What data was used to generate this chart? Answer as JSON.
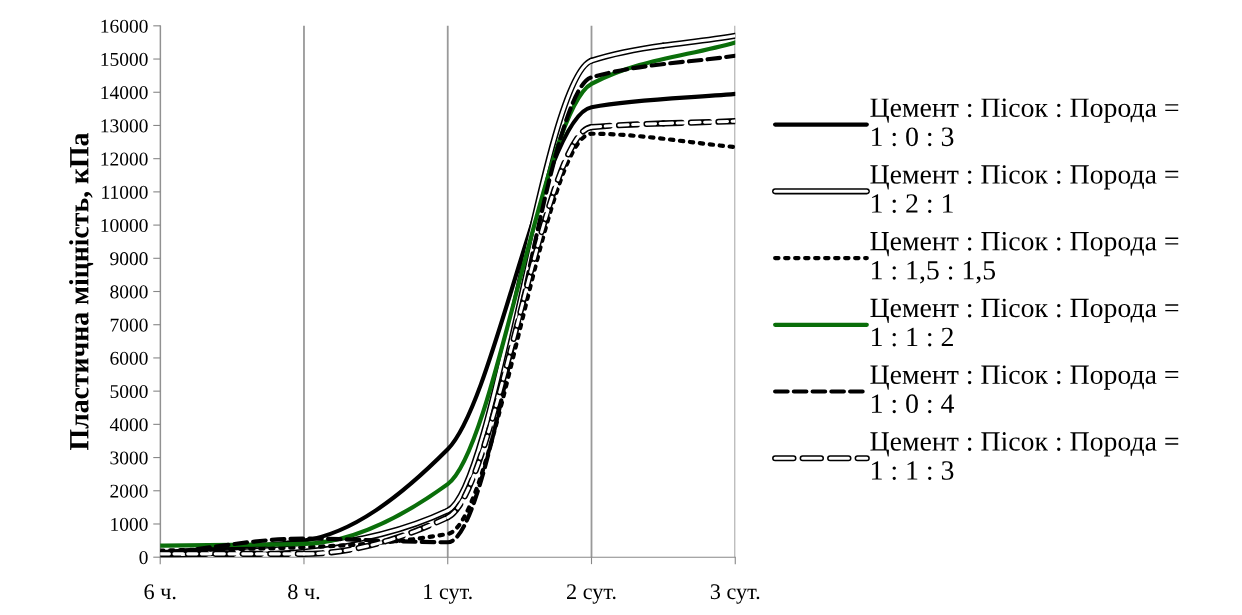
{
  "chart_data": {
    "type": "line",
    "ylabel": "Пластична міцність, кПа",
    "categories": [
      "6 ч.",
      "8 ч.",
      "1 сут.",
      "2 сут.",
      "3 сут."
    ],
    "ylim": [
      0,
      16000
    ],
    "yticks": [
      0,
      1000,
      2000,
      3000,
      4000,
      5000,
      6000,
      7000,
      8000,
      9000,
      10000,
      11000,
      12000,
      13000,
      14000,
      15000,
      16000
    ],
    "grid": "x",
    "legend": "right",
    "marker": "none",
    "series": [
      {
        "name": "Цемент : Пісок : Порода =\n1 : 0 : 3",
        "color": "#000000",
        "line_style": "solid",
        "values": [
          150,
          500,
          3250,
          13550,
          13950
        ]
      },
      {
        "name": "Цемент : Пісок : Порода =\n1 : 2 : 1",
        "color": "#000000",
        "colors": [
          "#ffffff",
          "#ffffff",
          "#ffffff",
          "#ffffff",
          "#ffffff"
        ],
        "line_style": "solid",
        "values": [
          50,
          300,
          1400,
          14950,
          15700
        ]
      },
      {
        "name": "Цемент : Пісок : Порода =\n1 : 1,5 : 1,5",
        "color": "#000000",
        "line_style": "dotted",
        "values": [
          200,
          300,
          700,
          12750,
          12350
        ]
      },
      {
        "name": "Цемент : Пісок : Порода =\n1 : 1 : 2",
        "color": "#0a6e0a",
        "line_style": "solid",
        "values": [
          350,
          400,
          2200,
          14250,
          15500
        ]
      },
      {
        "name": "Цемент : Пісок : Порода =\n1 : 0 : 4",
        "color": "#000000",
        "line_style": "dashed",
        "values": [
          100,
          560,
          450,
          14450,
          15100
        ]
      },
      {
        "name": "Цемент : Пісок : Порода =\n1 : 1 : 3",
        "color": "#000000",
        "colors": [
          "#ffffff",
          "#ffffff",
          "#ffffff",
          "#ffffff",
          "#ffffff"
        ],
        "line_style": "dashed",
        "values": [
          100,
          100,
          1200,
          12950,
          13130
        ]
      }
    ]
  }
}
